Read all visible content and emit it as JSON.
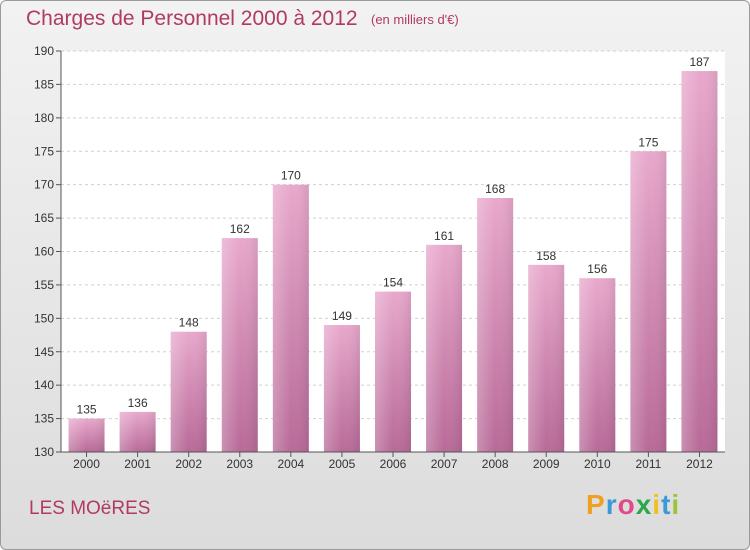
{
  "chart_data": {
    "type": "bar",
    "title": "Charges de Personnel 2000 à 2012",
    "subtitle": "(en milliers d'€)",
    "categories": [
      "2000",
      "2001",
      "2002",
      "2003",
      "2004",
      "2005",
      "2006",
      "2007",
      "2008",
      "2009",
      "2010",
      "2011",
      "2012"
    ],
    "values": [
      135,
      136,
      148,
      162,
      170,
      149,
      154,
      161,
      168,
      158,
      156,
      175,
      187
    ],
    "ylim": [
      130,
      190
    ],
    "yticks": [
      130,
      135,
      140,
      145,
      150,
      155,
      160,
      165,
      170,
      175,
      180,
      185,
      190
    ],
    "grid": true,
    "colors": {
      "bar": "#d98bb4",
      "title": "#b03a62"
    }
  },
  "place_name": "LES MOëRES",
  "logo": {
    "text": "Proxiti"
  }
}
